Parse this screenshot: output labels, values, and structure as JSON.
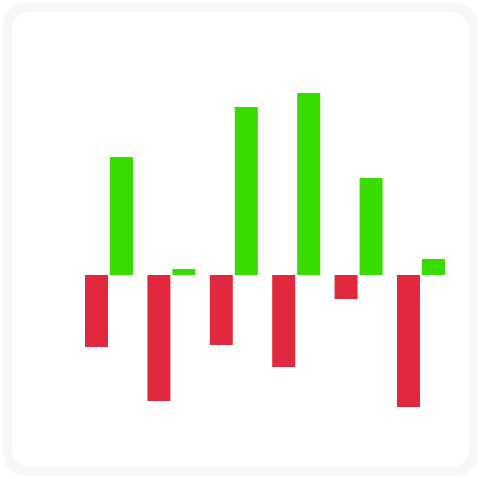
{
  "chart_data": {
    "type": "bar",
    "categories": [
      null,
      null,
      null,
      null,
      null,
      null
    ],
    "series": [
      {
        "color": "#e1283f",
        "values": [
          -72,
          -126,
          -70,
          -92,
          -24,
          -132
        ]
      },
      {
        "color": "#38dc00",
        "values": [
          118,
          6,
          168,
          182,
          97,
          16
        ]
      }
    ],
    "ylim": [
      -150,
      200
    ]
  }
}
